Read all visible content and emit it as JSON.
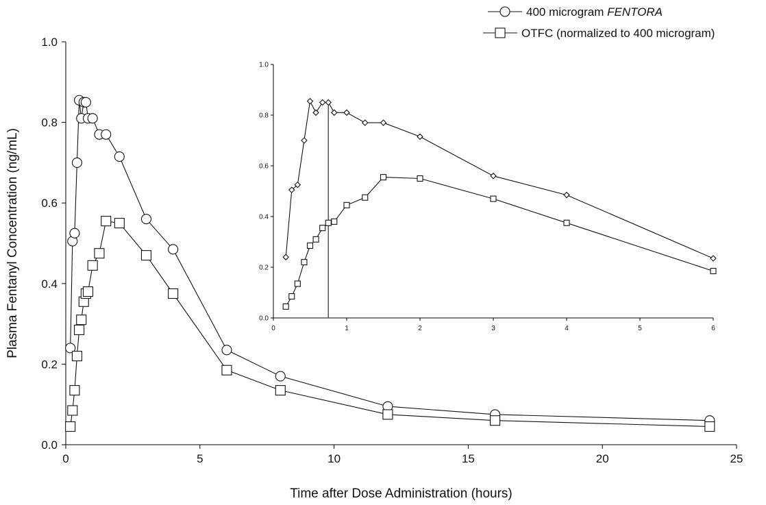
{
  "legend": {
    "items": [
      {
        "prefix": "400 microgram ",
        "emph": "FENTORA",
        "marker": "circle"
      },
      {
        "prefix": "OTFC (normalized to 400 microgram)",
        "emph": "",
        "marker": "square"
      }
    ]
  },
  "chart_data": [
    {
      "id": "main",
      "type": "line",
      "xlabel": "Time after Dose Administration (hours)",
      "ylabel": "Plasma Fentanyl Concentration (ng/mL)",
      "xlim": [
        0,
        25
      ],
      "ylim": [
        0,
        1.0
      ],
      "xticks": [
        0,
        5,
        10,
        15,
        20,
        25
      ],
      "xtick_labels": [
        "0",
        "5",
        "10",
        "15",
        "20",
        "25"
      ],
      "yticks": [
        0,
        0.2,
        0.4,
        0.6,
        0.8,
        1.0
      ],
      "ytick_labels": [
        "0.0",
        "0.2",
        "0.4",
        "0.6",
        "0.8",
        "1.0"
      ],
      "grid": false,
      "legend_position": "top-right",
      "series": [
        {
          "name": "400 microgram FENTORA",
          "marker": "circle",
          "x": [
            0.17,
            0.25,
            0.33,
            0.42,
            0.5,
            0.58,
            0.67,
            0.75,
            0.83,
            1,
            1.25,
            1.5,
            2,
            3,
            4,
            6,
            8,
            12,
            16,
            24
          ],
          "y": [
            0.24,
            0.505,
            0.525,
            0.7,
            0.855,
            0.81,
            0.85,
            0.85,
            0.81,
            0.81,
            0.77,
            0.77,
            0.715,
            0.56,
            0.485,
            0.235,
            0.17,
            0.095,
            0.075,
            0.06
          ]
        },
        {
          "name": "OTFC (normalized to 400 microgram)",
          "marker": "square",
          "x": [
            0.17,
            0.25,
            0.33,
            0.42,
            0.5,
            0.58,
            0.67,
            0.75,
            0.83,
            1,
            1.25,
            1.5,
            2,
            3,
            4,
            6,
            8,
            12,
            16,
            24
          ],
          "y": [
            0.045,
            0.085,
            0.135,
            0.22,
            0.285,
            0.31,
            0.355,
            0.375,
            0.38,
            0.445,
            0.475,
            0.555,
            0.55,
            0.47,
            0.375,
            0.185,
            0.135,
            0.075,
            0.06,
            0.045
          ]
        }
      ]
    },
    {
      "id": "inset",
      "type": "line",
      "xlabel": "",
      "ylabel": "",
      "xlim": [
        0,
        6
      ],
      "ylim": [
        0,
        1.0
      ],
      "xticks": [
        0,
        1,
        2,
        3,
        4,
        5,
        6
      ],
      "xtick_labels": [
        "0",
        "1",
        "2",
        "3",
        "4",
        "5",
        "6"
      ],
      "yticks": [
        0,
        0.2,
        0.4,
        0.6,
        0.8,
        1.0
      ],
      "ytick_labels": [
        "0.0",
        "0.2",
        "0.4",
        "0.6",
        "0.8",
        "1.0"
      ],
      "grid": false,
      "reference_line_x": 0.75,
      "series": [
        {
          "name": "400 microgram FENTORA",
          "marker": "diamond",
          "x": [
            0.17,
            0.25,
            0.33,
            0.42,
            0.5,
            0.58,
            0.67,
            0.75,
            0.83,
            1,
            1.25,
            1.5,
            2,
            3,
            4,
            6
          ],
          "y": [
            0.24,
            0.505,
            0.525,
            0.7,
            0.855,
            0.81,
            0.85,
            0.85,
            0.81,
            0.81,
            0.77,
            0.77,
            0.715,
            0.56,
            0.485,
            0.235
          ]
        },
        {
          "name": "OTFC (normalized to 400 microgram)",
          "marker": "square",
          "x": [
            0.17,
            0.25,
            0.33,
            0.42,
            0.5,
            0.58,
            0.67,
            0.75,
            0.83,
            1,
            1.25,
            1.5,
            2,
            3,
            4,
            6
          ],
          "y": [
            0.045,
            0.085,
            0.135,
            0.22,
            0.285,
            0.31,
            0.355,
            0.375,
            0.38,
            0.445,
            0.475,
            0.555,
            0.55,
            0.47,
            0.375,
            0.185
          ]
        }
      ]
    }
  ]
}
